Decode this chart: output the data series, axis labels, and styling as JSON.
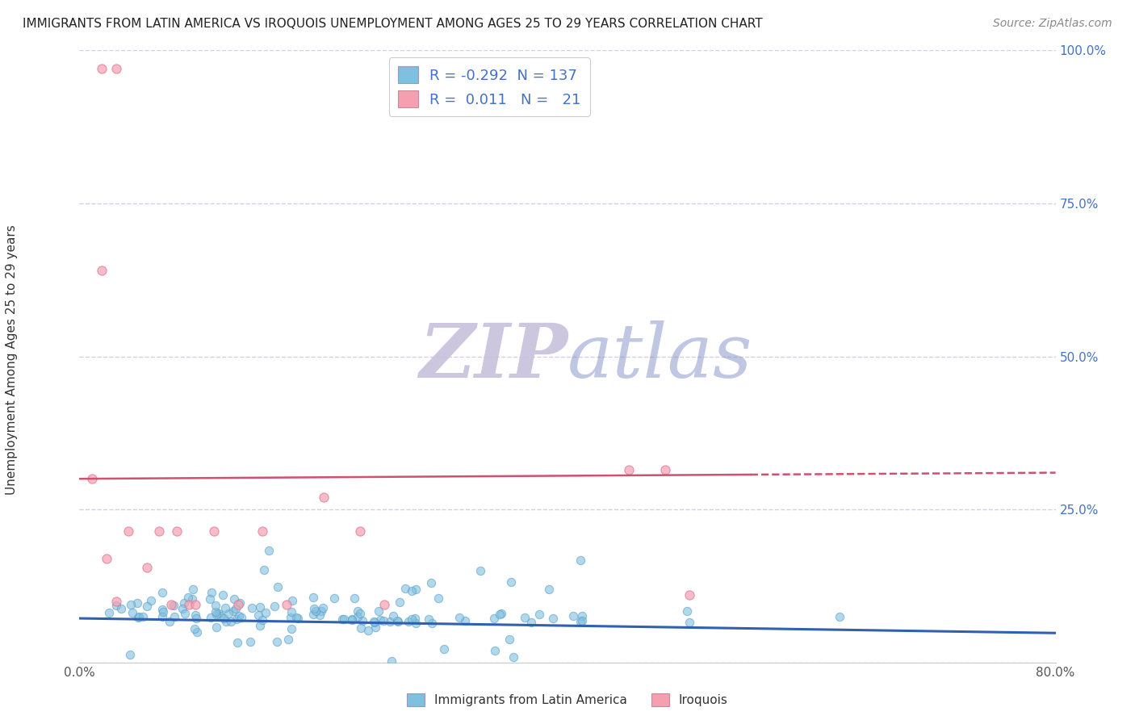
{
  "title": "IMMIGRANTS FROM LATIN AMERICA VS IROQUOIS UNEMPLOYMENT AMONG AGES 25 TO 29 YEARS CORRELATION CHART",
  "source": "Source: ZipAtlas.com",
  "ylabel": "Unemployment Among Ages 25 to 29 years",
  "xlim": [
    0.0,
    0.8
  ],
  "ylim": [
    0.0,
    1.0
  ],
  "xticks": [
    0.0,
    0.1,
    0.2,
    0.3,
    0.4,
    0.5,
    0.6,
    0.7,
    0.8
  ],
  "xticklabels": [
    "0.0%",
    "",
    "",
    "",
    "",
    "",
    "",
    "",
    "80.0%"
  ],
  "yticks": [
    0.0,
    0.25,
    0.5,
    0.75,
    1.0
  ],
  "yticklabels": [
    "",
    "25.0%",
    "50.0%",
    "75.0%",
    "100.0%"
  ],
  "blue_color": "#7fbfdf",
  "pink_color": "#f4a0b0",
  "blue_edge_color": "#5a9fc8",
  "pink_edge_color": "#e07090",
  "blue_line_color": "#3060b0",
  "pink_line_color": "#d05070",
  "grid_color": "#d8cce8",
  "background_color": "#ffffff",
  "watermark_zip_color": "#c8c0dc",
  "watermark_atlas_color": "#8090c8",
  "legend_R1": "-0.292",
  "legend_N1": "137",
  "legend_R2": "0.011",
  "legend_N2": "21",
  "blue_label": "Immigrants from Latin America",
  "pink_label": "Iroquois",
  "blue_trend_start_y": 0.072,
  "blue_trend_end_y": 0.048,
  "pink_trend_start_y": 0.3,
  "pink_trend_end_y": 0.31,
  "title_fontsize": 11,
  "source_fontsize": 10,
  "tick_fontsize": 11,
  "legend_fontsize": 13
}
